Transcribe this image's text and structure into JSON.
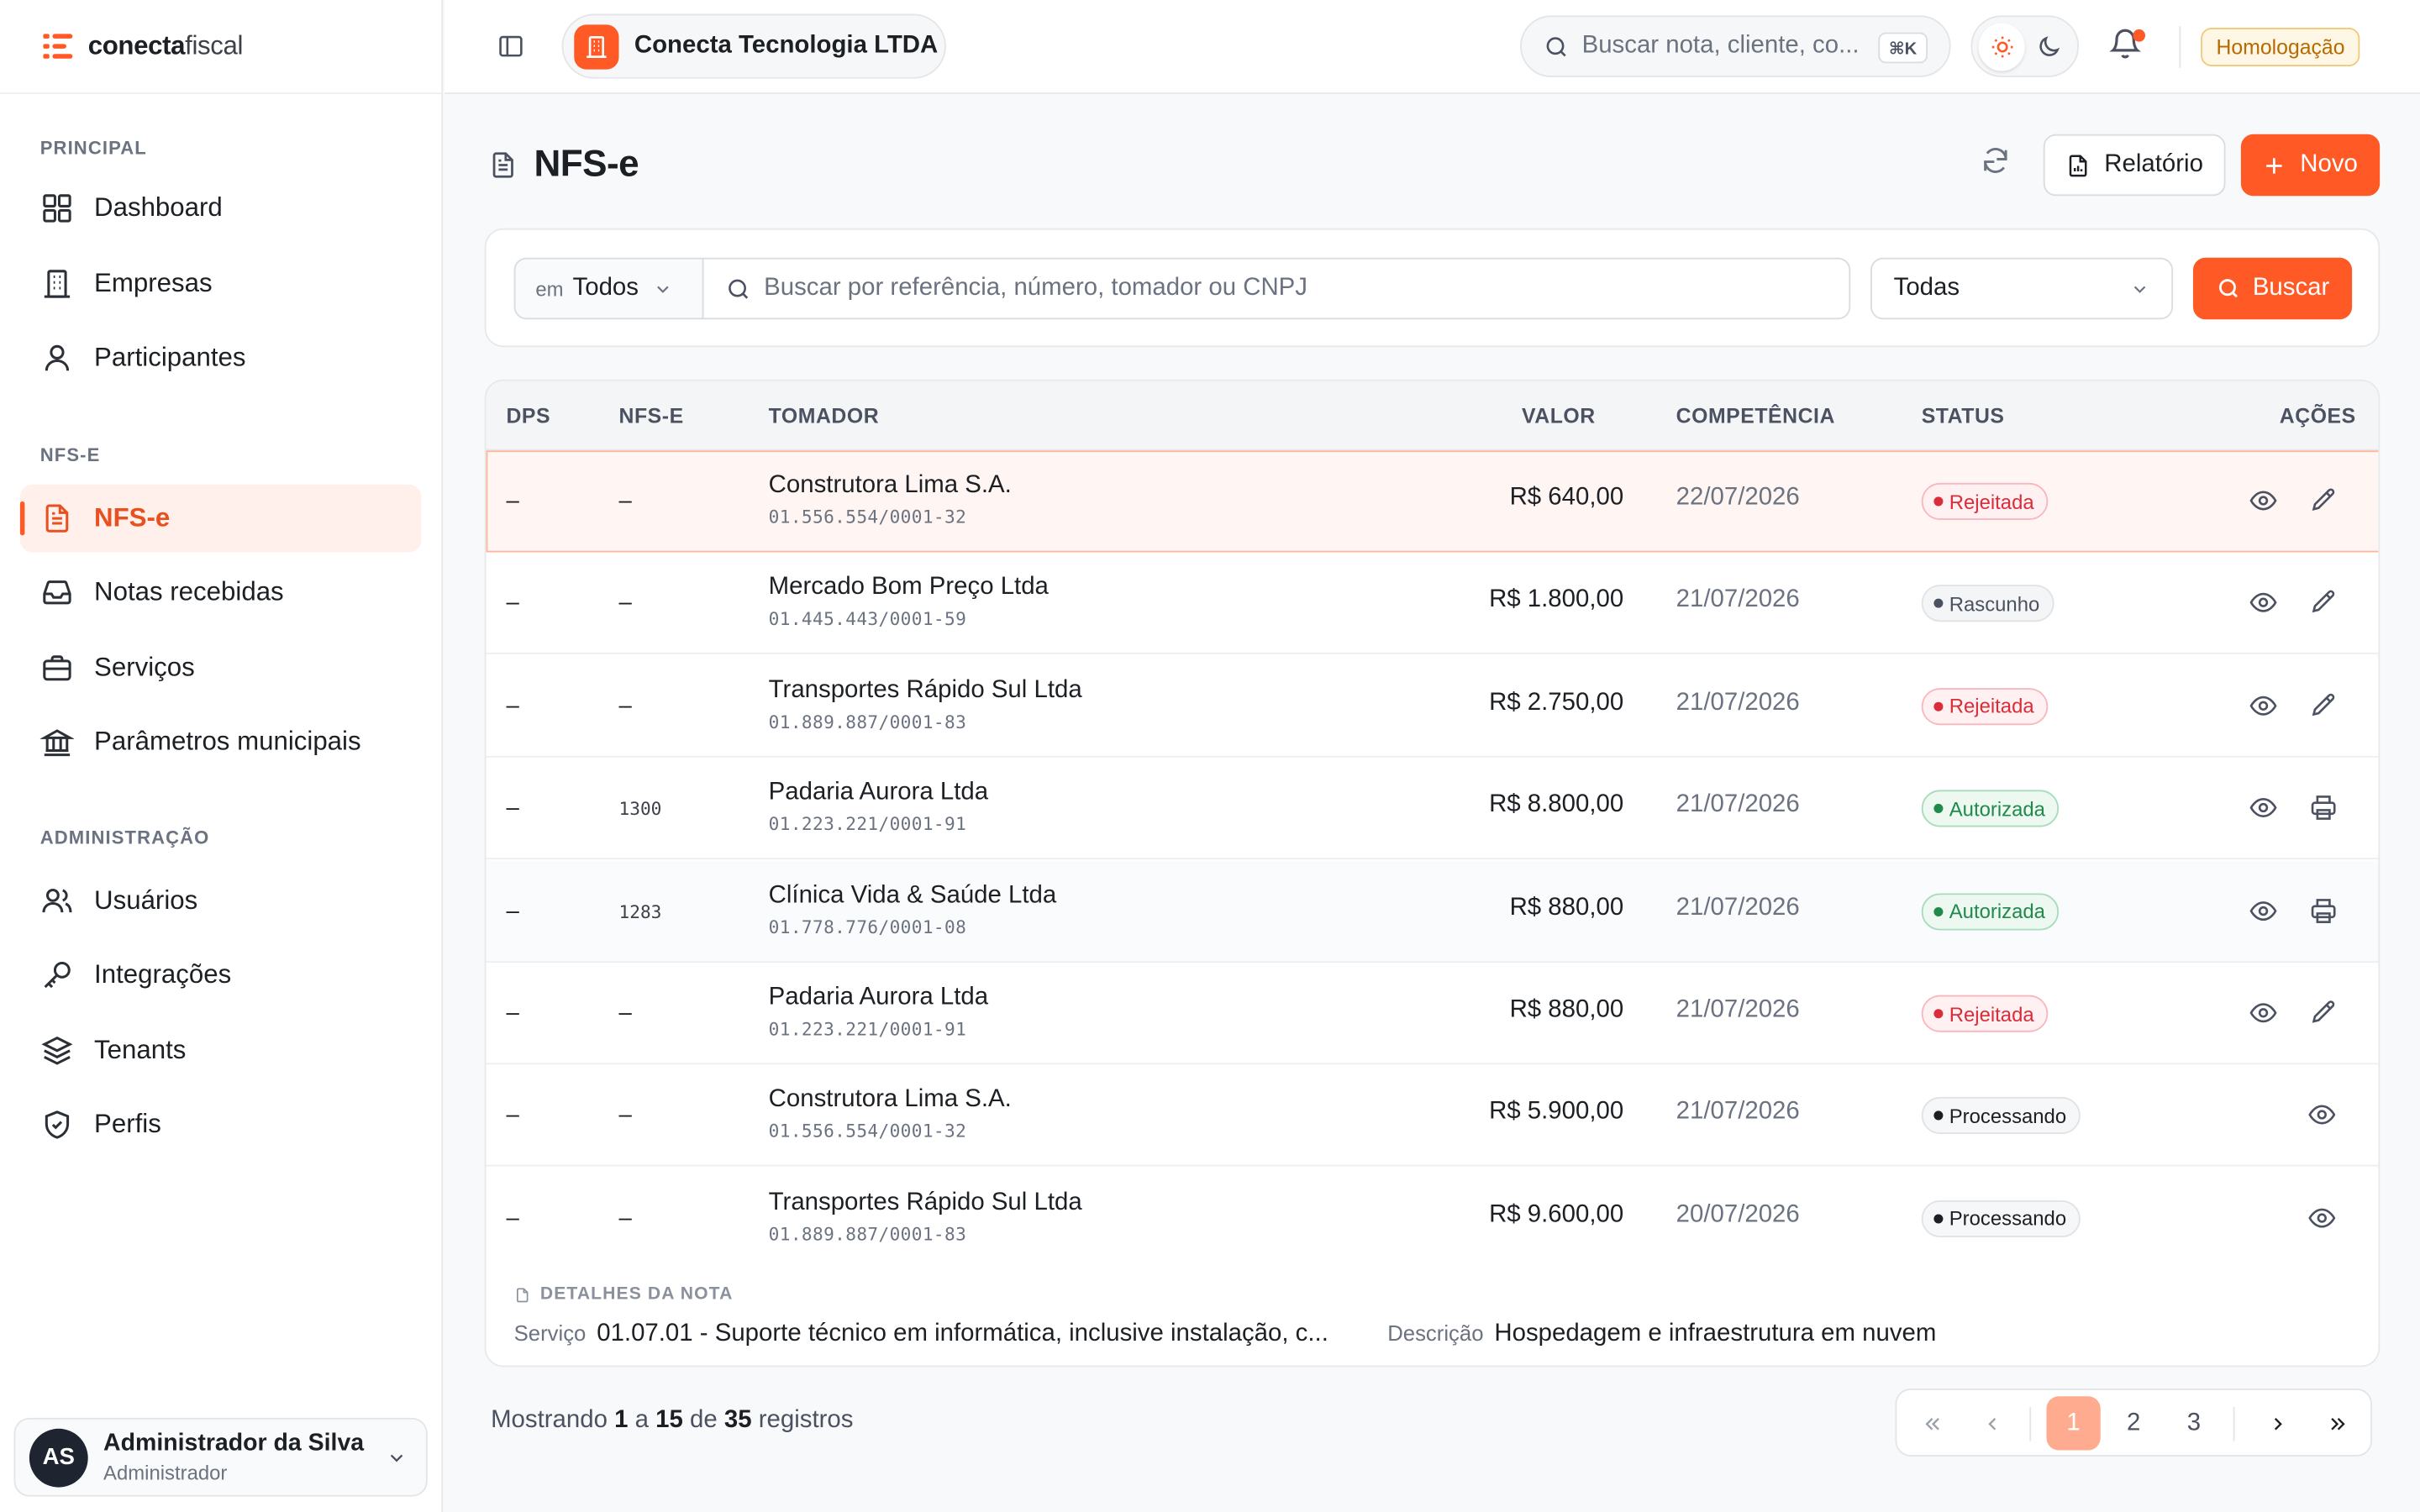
{
  "brand": {
    "name_bold": "conecta",
    "name_light": "fiscal"
  },
  "topbar": {
    "company": "Conecta Tecnologia LTDA",
    "search_placeholder": "Buscar nota, cliente, co...",
    "search_shortcut": "⌘K",
    "environment": "Homologação"
  },
  "sidebar": {
    "sections": [
      {
        "title": "PRINCIPAL",
        "items": [
          {
            "label": "Dashboard",
            "icon": "dashboard-icon"
          },
          {
            "label": "Empresas",
            "icon": "building-icon"
          },
          {
            "label": "Participantes",
            "icon": "user-icon"
          }
        ]
      },
      {
        "title": "NFS-E",
        "items": [
          {
            "label": "NFS-e",
            "icon": "document-icon",
            "active": true
          },
          {
            "label": "Notas recebidas",
            "icon": "inbox-icon"
          },
          {
            "label": "Serviços",
            "icon": "briefcase-icon"
          },
          {
            "label": "Parâmetros municipais",
            "icon": "bank-icon"
          }
        ]
      },
      {
        "title": "ADMINISTRAÇÃO",
        "items": [
          {
            "label": "Usuários",
            "icon": "users-icon"
          },
          {
            "label": "Integrações",
            "icon": "key-icon"
          },
          {
            "label": "Tenants",
            "icon": "layers-icon"
          },
          {
            "label": "Perfis",
            "icon": "shield-icon"
          }
        ]
      }
    ],
    "user": {
      "initials": "AS",
      "name": "Administrador da Silva",
      "role": "Administrador"
    }
  },
  "page": {
    "title": "NFS-e",
    "report_button": "Relatório",
    "new_button": "Novo"
  },
  "filters": {
    "scope_prefix": "em",
    "scope_value": "Todos",
    "search_placeholder": "Buscar por referência, número, tomador ou CNPJ",
    "status_value": "Todas",
    "search_button": "Buscar"
  },
  "table": {
    "columns": {
      "dps": "DPS",
      "nfse": "NFS-E",
      "tomador": "TOMADOR",
      "valor": "VALOR",
      "competencia": "COMPETÊNCIA",
      "status": "STATUS",
      "acoes": "AÇÕES"
    },
    "rows": [
      {
        "dps": "–",
        "nfse": "–",
        "tomador": "Construtora Lima S.A.",
        "cnpj": "01.556.554/0001-32",
        "valor": "R$ 640,00",
        "competencia": "22/07/2026",
        "status": "Rejeitada",
        "status_kind": "rej",
        "actions": [
          "view",
          "edit"
        ]
      },
      {
        "dps": "–",
        "nfse": "–",
        "tomador": "Mercado Bom Preço Ltda",
        "cnpj": "01.445.443/0001-59",
        "valor": "R$ 1.800,00",
        "competencia": "21/07/2026",
        "status": "Rascunho",
        "status_kind": "ras",
        "actions": [
          "view",
          "edit"
        ]
      },
      {
        "dps": "–",
        "nfse": "–",
        "tomador": "Transportes Rápido Sul Ltda",
        "cnpj": "01.889.887/0001-83",
        "valor": "R$ 2.750,00",
        "competencia": "21/07/2026",
        "status": "Rejeitada",
        "status_kind": "rej",
        "actions": [
          "view",
          "edit"
        ]
      },
      {
        "dps": "–",
        "nfse": "1300",
        "tomador": "Padaria Aurora Ltda",
        "cnpj": "01.223.221/0001-91",
        "valor": "R$ 8.800,00",
        "competencia": "21/07/2026",
        "status": "Autorizada",
        "status_kind": "aut",
        "actions": [
          "view",
          "print"
        ]
      },
      {
        "dps": "–",
        "nfse": "1283",
        "tomador": "Clínica Vida & Saúde Ltda",
        "cnpj": "01.778.776/0001-08",
        "valor": "R$ 880,00",
        "competencia": "21/07/2026",
        "status": "Autorizada",
        "status_kind": "aut",
        "actions": [
          "view",
          "print"
        ]
      },
      {
        "dps": "–",
        "nfse": "–",
        "tomador": "Padaria Aurora Ltda",
        "cnpj": "01.223.221/0001-91",
        "valor": "R$ 880,00",
        "competencia": "21/07/2026",
        "status": "Rejeitada",
        "status_kind": "rej",
        "actions": [
          "view",
          "edit"
        ]
      },
      {
        "dps": "–",
        "nfse": "–",
        "tomador": "Construtora Lima S.A.",
        "cnpj": "01.556.554/0001-32",
        "valor": "R$ 5.900,00",
        "competencia": "21/07/2026",
        "status": "Processando",
        "status_kind": "pro",
        "actions": [
          "view"
        ]
      },
      {
        "dps": "–",
        "nfse": "–",
        "tomador": "Transportes Rápido Sul Ltda",
        "cnpj": "01.889.887/0001-83",
        "valor": "R$ 9.600,00",
        "competencia": "20/07/2026",
        "status": "Processando",
        "status_kind": "pro",
        "actions": [
          "view"
        ]
      }
    ]
  },
  "details": {
    "title": "DETALHES DA NOTA",
    "service_label": "Serviço",
    "service_value": "01.07.01 - Suporte técnico em informática, inclusive instalação, c...",
    "description_label": "Descrição",
    "description_value": "Hospedagem e infraestrutura em nuvem"
  },
  "footer": {
    "showing_prefix": "Mostrando",
    "from": "1",
    "to_word": "a",
    "to": "15",
    "of_word": "de",
    "total": "35",
    "suffix": "registros",
    "pages": [
      "1",
      "2",
      "3"
    ],
    "current_page": "1"
  },
  "colors": {
    "accent": "#ff5a26",
    "active_bg": "#fff0eb"
  }
}
